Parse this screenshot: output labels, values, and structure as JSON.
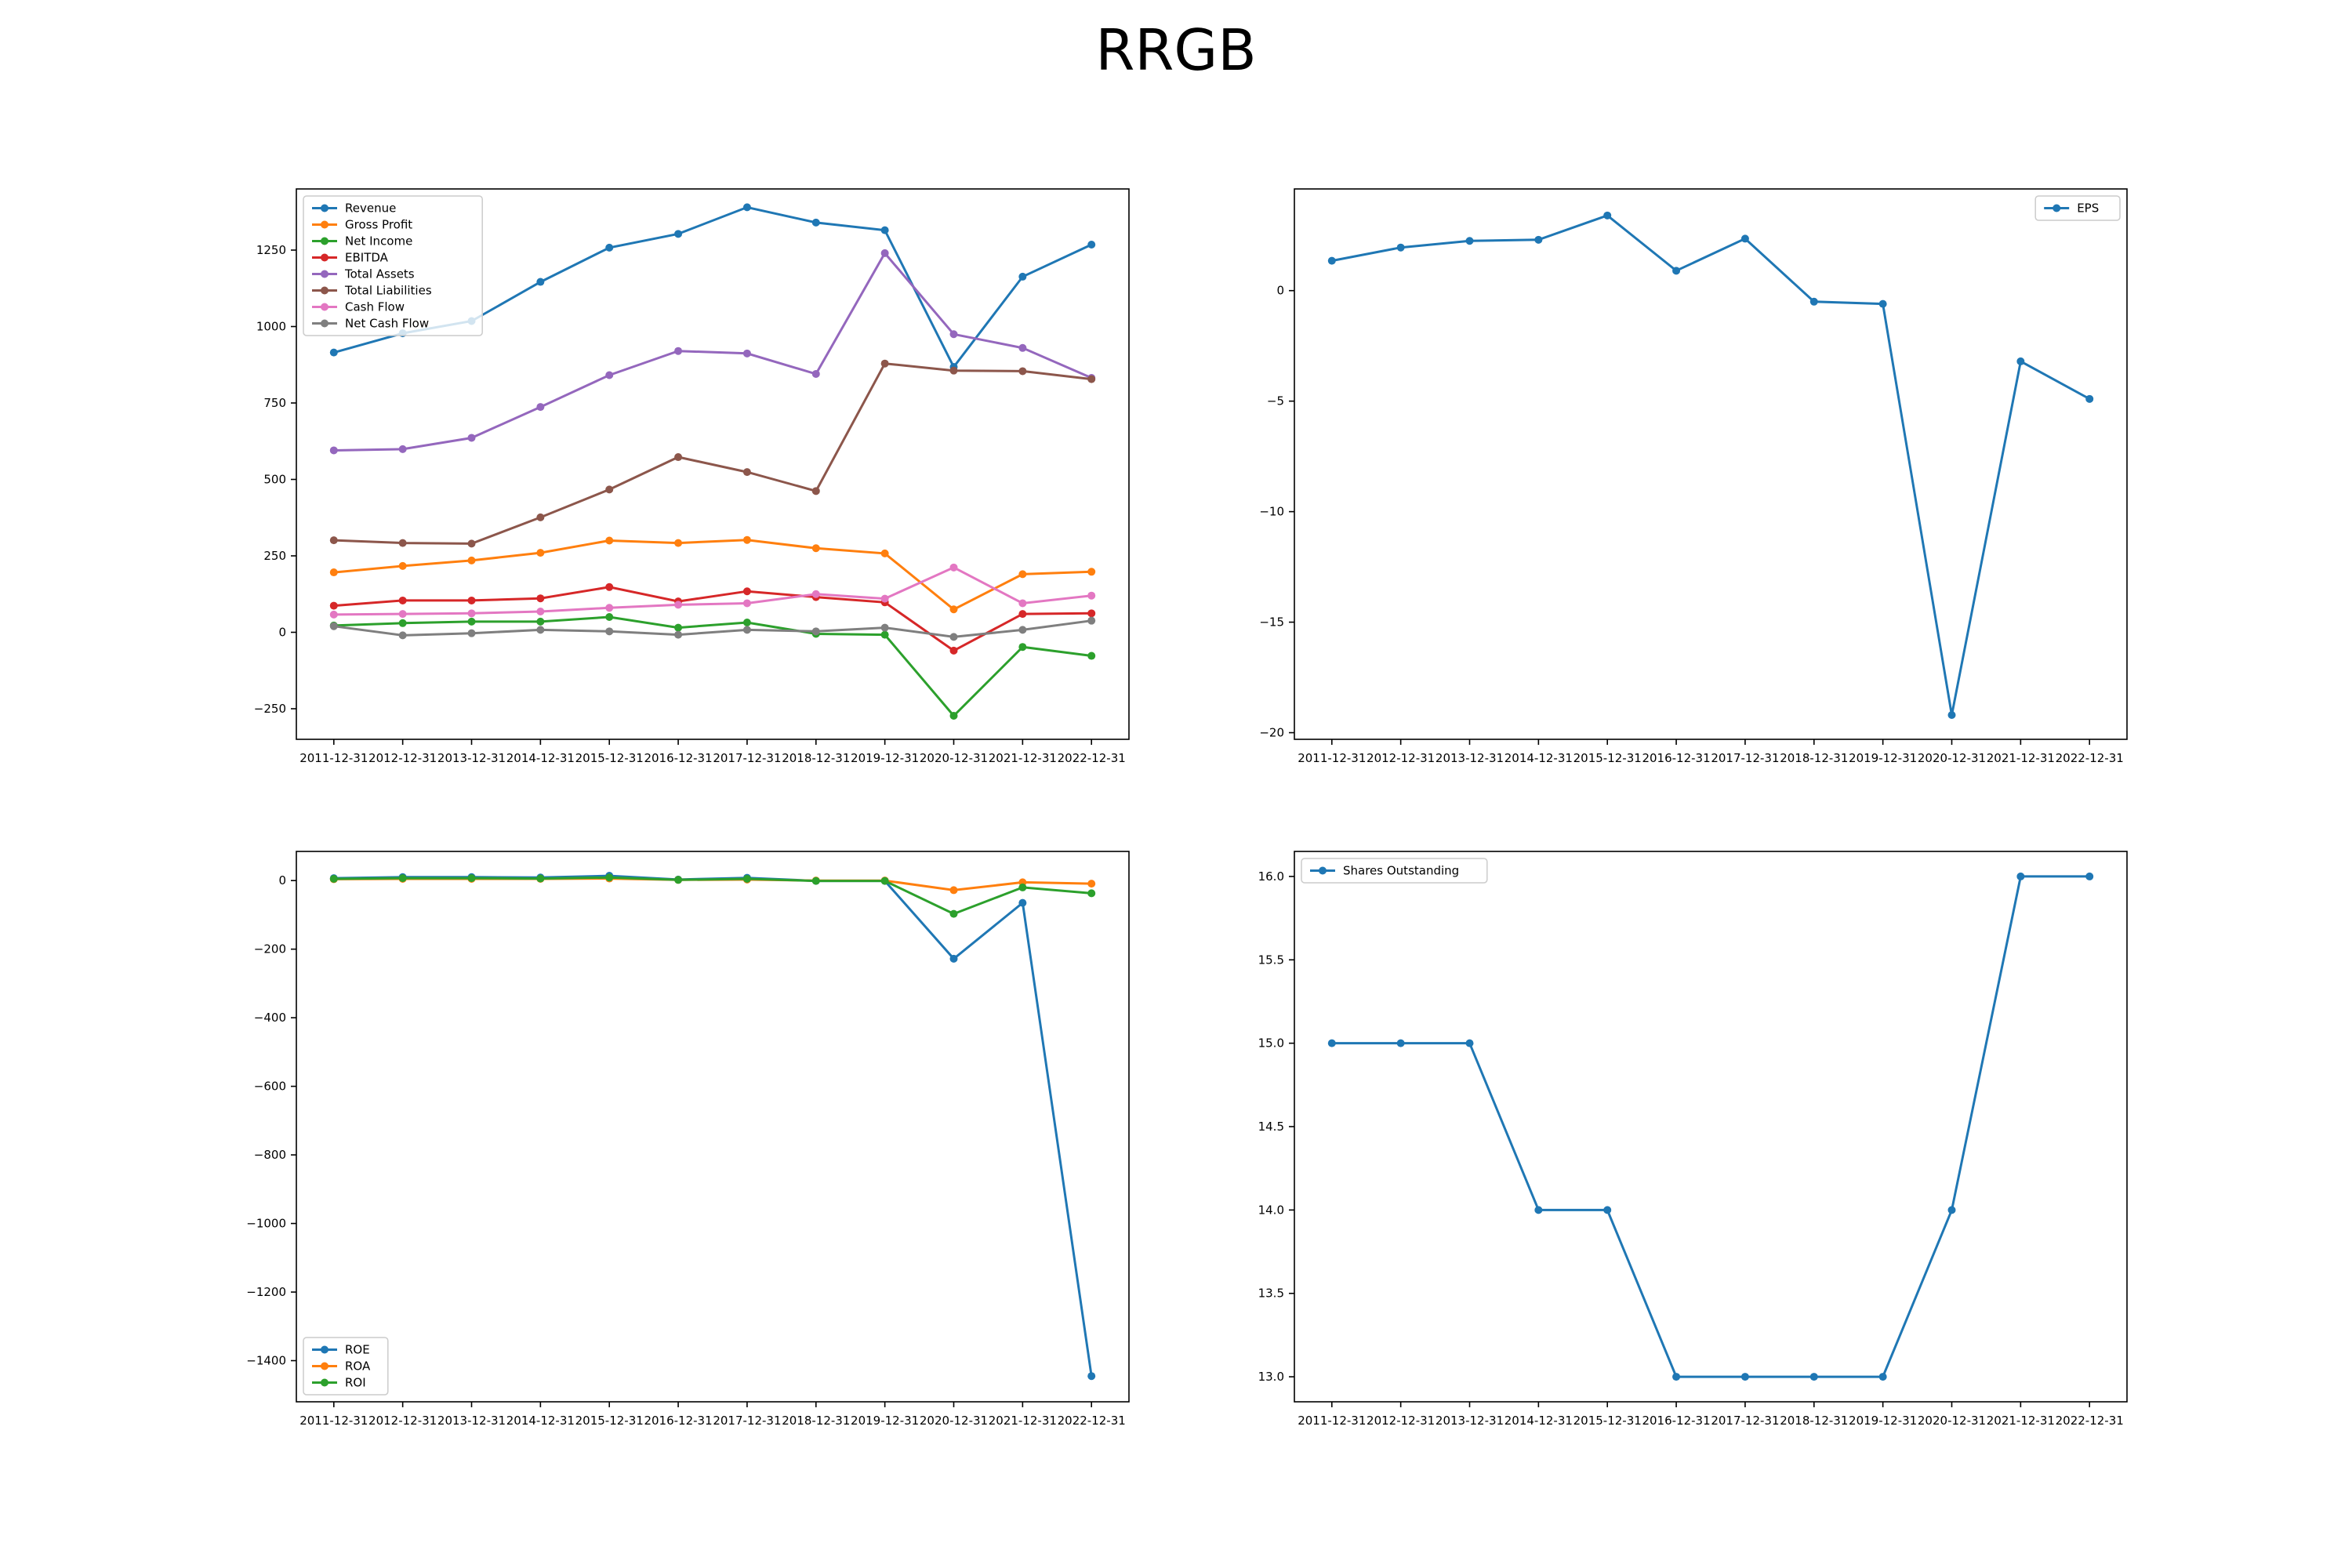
{
  "figure": {
    "title": "RRGB"
  },
  "chart_data": [
    {
      "type": "line",
      "categories": [
        "2011-12-31",
        "2012-12-31",
        "2013-12-31",
        "2014-12-31",
        "2015-12-31",
        "2016-12-31",
        "2017-12-31",
        "2018-12-31",
        "2019-12-31",
        "2020-12-31",
        "2021-12-31",
        "2022-12-31"
      ],
      "ylim": [
        -350,
        1450
      ],
      "yticks": [
        -250,
        0,
        250,
        500,
        750,
        1000,
        1250
      ],
      "grid": false,
      "legend_position": "upper-left",
      "series": [
        {
          "name": "Revenue",
          "color": "#1f77b4",
          "values": [
            915,
            978,
            1018,
            1146,
            1258,
            1303,
            1390,
            1340,
            1315,
            868,
            1163,
            1268
          ]
        },
        {
          "name": "Gross Profit",
          "color": "#ff7f0e",
          "values": [
            196,
            217,
            235,
            260,
            300,
            292,
            302,
            275,
            258,
            75,
            190,
            198
          ]
        },
        {
          "name": "Net Income",
          "color": "#2ca02c",
          "values": [
            22,
            30,
            35,
            35,
            50,
            15,
            32,
            -5,
            -8,
            -273,
            -48,
            -77
          ]
        },
        {
          "name": "EBITDA",
          "color": "#d62728",
          "values": [
            87,
            104,
            104,
            111,
            148,
            101,
            134,
            115,
            98,
            -60,
            60,
            62
          ]
        },
        {
          "name": "Total Assets",
          "color": "#9467bd",
          "values": [
            595,
            599,
            636,
            737,
            841,
            920,
            912,
            845,
            1240,
            975,
            930,
            832
          ]
        },
        {
          "name": "Total Liabilities",
          "color": "#8c564b",
          "values": [
            301,
            292,
            290,
            376,
            467,
            573,
            524,
            462,
            879,
            856,
            854,
            828
          ]
        },
        {
          "name": "Cash Flow",
          "color": "#e377c2",
          "values": [
            58,
            60,
            62,
            68,
            80,
            90,
            95,
            125,
            110,
            212,
            95,
            120
          ]
        },
        {
          "name": "Net Cash Flow",
          "color": "#7f7f7f",
          "values": [
            20,
            -10,
            -3,
            8,
            3,
            -8,
            8,
            3,
            15,
            -15,
            8,
            38
          ]
        }
      ]
    },
    {
      "type": "line",
      "categories": [
        "2011-12-31",
        "2012-12-31",
        "2013-12-31",
        "2014-12-31",
        "2015-12-31",
        "2016-12-31",
        "2017-12-31",
        "2018-12-31",
        "2019-12-31",
        "2020-12-31",
        "2021-12-31",
        "2022-12-31"
      ],
      "ylim": [
        -20.3,
        4.6
      ],
      "yticks": [
        -20,
        -15,
        -10,
        -5,
        0
      ],
      "grid": false,
      "legend_position": "upper-right",
      "series": [
        {
          "name": "EPS",
          "color": "#1f77b4",
          "values": [
            1.35,
            1.95,
            2.25,
            2.3,
            3.4,
            0.9,
            2.35,
            -0.5,
            -0.6,
            -19.2,
            -3.2,
            -4.9
          ]
        }
      ]
    },
    {
      "type": "line",
      "categories": [
        "2011-12-31",
        "2012-12-31",
        "2013-12-31",
        "2014-12-31",
        "2015-12-31",
        "2016-12-31",
        "2017-12-31",
        "2018-12-31",
        "2019-12-31",
        "2020-12-31",
        "2021-12-31",
        "2022-12-31"
      ],
      "ylim": [
        -1520,
        85
      ],
      "yticks": [
        -1400,
        -1200,
        -1000,
        -800,
        -600,
        -400,
        -200,
        0
      ],
      "grid": false,
      "legend_position": "lower-left",
      "series": [
        {
          "name": "ROE",
          "color": "#1f77b4",
          "values": [
            7,
            10,
            10,
            9,
            14,
            3,
            8,
            -1,
            -1,
            -228,
            -65,
            -1445
          ]
        },
        {
          "name": "ROA",
          "color": "#ff7f0e",
          "values": [
            4,
            5,
            5,
            5,
            6,
            2,
            3,
            0,
            0,
            -28,
            -5,
            -9
          ]
        },
        {
          "name": "ROI",
          "color": "#2ca02c",
          "values": [
            5,
            7,
            7,
            6,
            9,
            2,
            5,
            -1,
            -1,
            -97,
            -20,
            -37
          ]
        }
      ]
    },
    {
      "type": "line",
      "categories": [
        "2011-12-31",
        "2012-12-31",
        "2013-12-31",
        "2014-12-31",
        "2015-12-31",
        "2016-12-31",
        "2017-12-31",
        "2018-12-31",
        "2019-12-31",
        "2020-12-31",
        "2021-12-31",
        "2022-12-31"
      ],
      "ylim": [
        12.85,
        16.15
      ],
      "yticks": [
        13.0,
        13.5,
        14.0,
        14.5,
        15.0,
        15.5,
        16.0
      ],
      "ytick_decimals": 1,
      "grid": false,
      "legend_position": "upper-left",
      "series": [
        {
          "name": "Shares Outstanding",
          "color": "#1f77b4",
          "values": [
            15,
            15,
            15,
            14,
            14,
            13,
            13,
            13,
            13,
            14,
            16,
            16
          ]
        }
      ]
    }
  ]
}
